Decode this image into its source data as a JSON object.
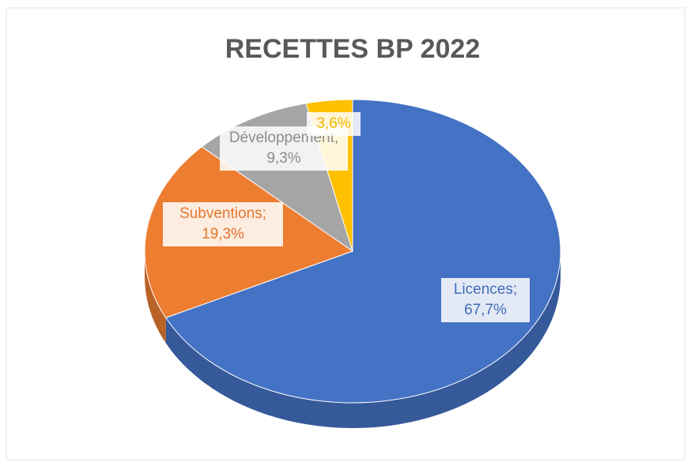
{
  "chart_data": {
    "type": "pie",
    "title": "RECETTES BP 2022",
    "categories": [
      "Licences",
      "Subventions",
      "Développement",
      null
    ],
    "values": [
      67.7,
      19.3,
      9.3,
      3.6
    ],
    "value_labels": [
      "67,7%",
      "19,3%",
      "9,3%",
      "3,6%"
    ],
    "label_separator": ";",
    "colors": [
      "#4472c4",
      "#ed7d31",
      "#a5a5a5",
      "#ffc000"
    ],
    "start_angle": 0,
    "direction": "clockwise",
    "three_d": true
  }
}
